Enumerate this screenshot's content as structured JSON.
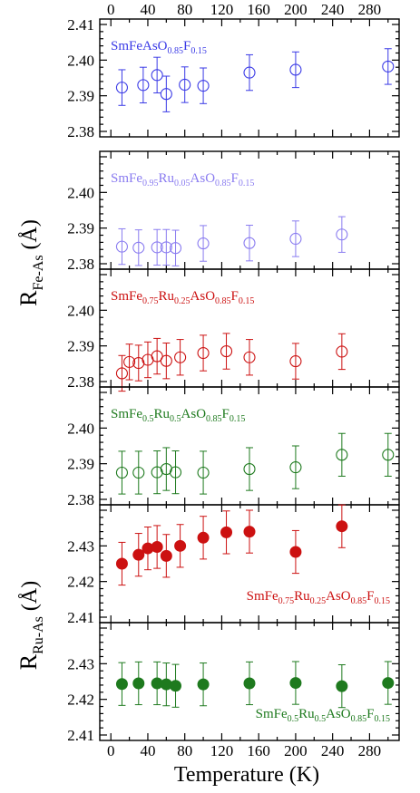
{
  "figure": {
    "xlabel": "Temperature (K)",
    "top_ticks": [
      "0",
      "40",
      "80",
      "120",
      "160",
      "200",
      "240",
      "280"
    ],
    "bottom_ticks": [
      "0",
      "40",
      "80",
      "120",
      "160",
      "200",
      "240",
      "280"
    ],
    "ylabel_fe": {
      "main": "R",
      "sub": "Fe-As",
      "tail": "(Å)"
    },
    "ylabel_ru": {
      "main": "R",
      "sub": "Ru-As",
      "tail": "(Å)"
    }
  },
  "colors": {
    "blue": "#3a3ae6",
    "purple": "#8a7cf0",
    "red": "#cc1111",
    "green": "#1e7a1e"
  },
  "chart_data": {
    "type": "scatter",
    "xlim": [
      -12,
      312
    ],
    "panels": [
      {
        "id": "p1",
        "quantity": "Fe-As",
        "ylim": [
          2.38,
          2.41
        ],
        "yticks": [
          "2.38",
          "2.39",
          "2.40",
          "2.41"
        ],
        "marker": "open",
        "color": "#3a3ae6",
        "label": [
          "SmFeAsO",
          {
            "s": "0.85"
          },
          "F",
          {
            "s": "0.15"
          }
        ],
        "label_pos": "top-left",
        "points": [
          {
            "x": 12,
            "y": 2.3923,
            "err": 0.005
          },
          {
            "x": 35,
            "y": 2.393,
            "err": 0.005
          },
          {
            "x": 50,
            "y": 2.3958,
            "err": 0.005
          },
          {
            "x": 60,
            "y": 2.3905,
            "err": 0.005
          },
          {
            "x": 80,
            "y": 2.3931,
            "err": 0.005
          },
          {
            "x": 100,
            "y": 2.3928,
            "err": 0.005
          },
          {
            "x": 150,
            "y": 2.3965,
            "err": 0.005
          },
          {
            "x": 200,
            "y": 2.3973,
            "err": 0.005
          },
          {
            "x": 300,
            "y": 2.3982,
            "err": 0.005
          }
        ]
      },
      {
        "id": "p2",
        "quantity": "Fe-As",
        "ylim": [
          2.38,
          2.41
        ],
        "yticks": [
          "2.38",
          "2.39",
          "2.40",
          ""
        ],
        "marker": "open",
        "color": "#8a7cf0",
        "label": [
          "SmFe",
          {
            "s": "0.95"
          },
          "Ru",
          {
            "s": "0.05"
          },
          "AsO",
          {
            "s": "0.85"
          },
          "F",
          {
            "s": "0.15"
          }
        ],
        "label_pos": "top-left",
        "points": [
          {
            "x": 12,
            "y": 2.3848,
            "err": 0.005
          },
          {
            "x": 30,
            "y": 2.3845,
            "err": 0.005
          },
          {
            "x": 50,
            "y": 2.3846,
            "err": 0.005
          },
          {
            "x": 60,
            "y": 2.3846,
            "err": 0.005
          },
          {
            "x": 70,
            "y": 2.3844,
            "err": 0.005
          },
          {
            "x": 100,
            "y": 2.3857,
            "err": 0.005
          },
          {
            "x": 150,
            "y": 2.3858,
            "err": 0.005
          },
          {
            "x": 200,
            "y": 2.387,
            "err": 0.005
          },
          {
            "x": 250,
            "y": 2.3882,
            "err": 0.005
          }
        ]
      },
      {
        "id": "p3",
        "quantity": "Fe-As",
        "ylim": [
          2.38,
          2.41
        ],
        "yticks": [
          "2.38",
          "2.39",
          "2.40",
          ""
        ],
        "marker": "open",
        "color": "#cc1111",
        "label": [
          "SmFe",
          {
            "s": "0.75"
          },
          "Ru",
          {
            "s": "0.25"
          },
          "AsO",
          {
            "s": "0.85"
          },
          "F",
          {
            "s": "0.15"
          }
        ],
        "label_pos": "top-left",
        "points": [
          {
            "x": 12,
            "y": 2.3823,
            "err": 0.005
          },
          {
            "x": 20,
            "y": 2.3855,
            "err": 0.005
          },
          {
            "x": 30,
            "y": 2.3852,
            "err": 0.005
          },
          {
            "x": 40,
            "y": 2.3861,
            "err": 0.005
          },
          {
            "x": 50,
            "y": 2.3871,
            "err": 0.005
          },
          {
            "x": 60,
            "y": 2.3858,
            "err": 0.005
          },
          {
            "x": 75,
            "y": 2.3868,
            "err": 0.005
          },
          {
            "x": 100,
            "y": 2.388,
            "err": 0.005
          },
          {
            "x": 125,
            "y": 2.3885,
            "err": 0.005
          },
          {
            "x": 150,
            "y": 2.3868,
            "err": 0.005
          },
          {
            "x": 200,
            "y": 2.3857,
            "err": 0.005
          },
          {
            "x": 250,
            "y": 2.3884,
            "err": 0.005
          }
        ]
      },
      {
        "id": "p4",
        "quantity": "Fe-As",
        "ylim": [
          2.38,
          2.41
        ],
        "yticks": [
          "2.38",
          "2.39",
          "2.40",
          ""
        ],
        "marker": "open",
        "color": "#1e7a1e",
        "label": [
          "SmFe",
          {
            "s": "0.5"
          },
          "Ru",
          {
            "s": "0.5"
          },
          "AsO",
          {
            "s": "0.85"
          },
          "F",
          {
            "s": "0.15"
          }
        ],
        "label_pos": "top-left",
        "points": [
          {
            "x": 12,
            "y": 2.3875,
            "err": 0.006
          },
          {
            "x": 30,
            "y": 2.3875,
            "err": 0.006
          },
          {
            "x": 50,
            "y": 2.3876,
            "err": 0.006
          },
          {
            "x": 60,
            "y": 2.3885,
            "err": 0.006
          },
          {
            "x": 70,
            "y": 2.3876,
            "err": 0.006
          },
          {
            "x": 100,
            "y": 2.3875,
            "err": 0.006
          },
          {
            "x": 150,
            "y": 2.3885,
            "err": 0.006
          },
          {
            "x": 200,
            "y": 2.389,
            "err": 0.006
          },
          {
            "x": 250,
            "y": 2.3925,
            "err": 0.006
          },
          {
            "x": 300,
            "y": 2.3925,
            "err": 0.006
          }
        ]
      },
      {
        "id": "p5",
        "quantity": "Ru-As",
        "ylim": [
          2.41,
          2.44
        ],
        "yticks": [
          "2.41",
          "2.42",
          "2.43",
          ""
        ],
        "marker": "filled",
        "color": "#cc1111",
        "label": [
          "SmFe",
          {
            "s": "0.75"
          },
          "Ru",
          {
            "s": "0.25"
          },
          "AsO",
          {
            "s": "0.85"
          },
          "F",
          {
            "s": "0.15"
          }
        ],
        "label_pos": "bottom-right",
        "points": [
          {
            "x": 12,
            "y": 2.425,
            "err": 0.006
          },
          {
            "x": 30,
            "y": 2.4275,
            "err": 0.006
          },
          {
            "x": 40,
            "y": 2.4293,
            "err": 0.006
          },
          {
            "x": 50,
            "y": 2.4297,
            "err": 0.006
          },
          {
            "x": 60,
            "y": 2.4272,
            "err": 0.006
          },
          {
            "x": 75,
            "y": 2.43,
            "err": 0.006
          },
          {
            "x": 100,
            "y": 2.4323,
            "err": 0.006
          },
          {
            "x": 125,
            "y": 2.4338,
            "err": 0.006
          },
          {
            "x": 150,
            "y": 2.434,
            "err": 0.006
          },
          {
            "x": 200,
            "y": 2.4283,
            "err": 0.006
          },
          {
            "x": 250,
            "y": 2.4355,
            "err": 0.006
          }
        ]
      },
      {
        "id": "p6",
        "quantity": "Ru-As",
        "ylim": [
          2.41,
          2.44
        ],
        "yticks": [
          "2.41",
          "2.42",
          "2.43",
          ""
        ],
        "marker": "filled",
        "color": "#1e7a1e",
        "label": [
          "SmFe",
          {
            "s": "0.5"
          },
          "Ru",
          {
            "s": "0.5"
          },
          "AsO",
          {
            "s": "0.85"
          },
          "F",
          {
            "s": "0.15"
          }
        ],
        "label_pos": "bottom-right",
        "points": [
          {
            "x": 12,
            "y": 2.4243,
            "err": 0.006
          },
          {
            "x": 30,
            "y": 2.4245,
            "err": 0.006
          },
          {
            "x": 50,
            "y": 2.4245,
            "err": 0.006
          },
          {
            "x": 60,
            "y": 2.4242,
            "err": 0.006
          },
          {
            "x": 70,
            "y": 2.4238,
            "err": 0.006
          },
          {
            "x": 100,
            "y": 2.4242,
            "err": 0.006
          },
          {
            "x": 150,
            "y": 2.4245,
            "err": 0.006
          },
          {
            "x": 200,
            "y": 2.4246,
            "err": 0.006
          },
          {
            "x": 250,
            "y": 2.4237,
            "err": 0.006
          },
          {
            "x": 300,
            "y": 2.4246,
            "err": 0.006
          }
        ]
      }
    ]
  }
}
